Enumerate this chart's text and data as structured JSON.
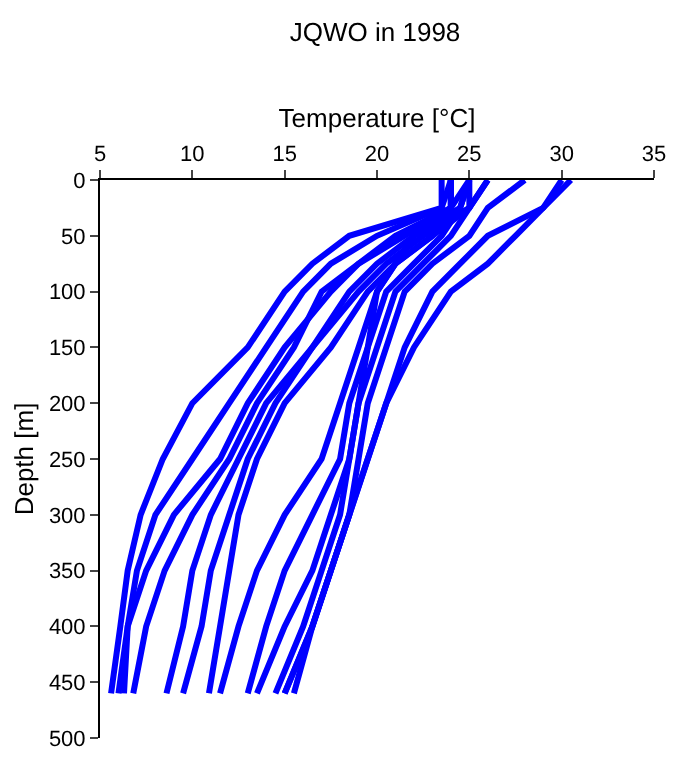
{
  "chart_data": {
    "type": "line",
    "title": "JQWO in 1998",
    "xlabel": "Temperature [°C]",
    "ylabel": "Depth [m]",
    "xlim": [
      5,
      35
    ],
    "xticks": [
      5,
      10,
      15,
      20,
      25,
      30,
      35
    ],
    "ylim": [
      500,
      0
    ],
    "yticks": [
      0,
      50,
      100,
      150,
      200,
      250,
      300,
      350,
      400,
      450,
      500
    ],
    "marker": "none",
    "line_style": "solid",
    "series": [
      {
        "color": "#0000ff",
        "x": [
          23.5,
          23.5,
          18.5,
          16.5,
          15,
          13,
          10,
          8.4,
          7.2,
          6.5,
          6.1,
          5.6
        ],
        "values": [
          0,
          25,
          50,
          75,
          100,
          150,
          200,
          250,
          300,
          350,
          400,
          460
        ]
      },
      {
        "color": "#0000ff",
        "x": [
          24,
          23.5,
          20,
          17.5,
          16,
          14,
          12,
          10,
          8,
          7,
          6.5,
          6
        ],
        "values": [
          0,
          25,
          50,
          75,
          100,
          150,
          200,
          250,
          300,
          350,
          400,
          460
        ]
      },
      {
        "color": "#0000ff",
        "x": [
          24,
          24,
          21,
          19,
          17.5,
          15,
          13,
          11.5,
          9,
          7.5,
          6.5,
          6.3
        ],
        "values": [
          0,
          25,
          50,
          75,
          100,
          150,
          200,
          250,
          300,
          350,
          400,
          460
        ]
      },
      {
        "color": "#0000ff",
        "x": [
          25,
          24,
          21.5,
          19,
          17,
          15.5,
          13.5,
          12,
          10,
          8.5,
          7.5,
          6.8
        ],
        "values": [
          0,
          25,
          50,
          75,
          100,
          150,
          200,
          250,
          300,
          350,
          400,
          460
        ]
      },
      {
        "color": "#0000ff",
        "x": [
          25,
          24.5,
          22,
          20,
          18.5,
          16.5,
          14,
          12.5,
          11,
          10,
          9.5,
          8.6
        ],
        "values": [
          0,
          25,
          50,
          75,
          100,
          150,
          200,
          250,
          300,
          350,
          400,
          460
        ]
      },
      {
        "color": "#0000ff",
        "x": [
          26,
          25,
          22.5,
          20.5,
          19,
          16.5,
          14.5,
          13,
          12,
          11,
          10.5,
          9.5
        ],
        "values": [
          0,
          25,
          50,
          75,
          100,
          150,
          200,
          250,
          300,
          350,
          400,
          460
        ]
      },
      {
        "color": "#0000ff",
        "x": [
          26,
          25,
          23,
          21,
          19.5,
          17.5,
          15,
          13.5,
          12.5,
          12,
          11.5,
          10.9
        ],
        "values": [
          0,
          25,
          50,
          75,
          100,
          150,
          200,
          250,
          300,
          350,
          400,
          460
        ]
      },
      {
        "color": "#0000ff",
        "x": [
          24,
          24,
          22,
          21,
          20,
          19,
          18,
          17,
          15,
          13.5,
          12.5,
          11.5
        ],
        "values": [
          0,
          25,
          50,
          75,
          100,
          150,
          200,
          250,
          300,
          350,
          400,
          460
        ]
      },
      {
        "color": "#0000ff",
        "x": [
          24,
          24,
          23,
          21,
          20,
          19.5,
          18.5,
          18,
          16.5,
          15,
          14,
          13
        ],
        "values": [
          0,
          25,
          50,
          75,
          100,
          150,
          200,
          250,
          300,
          350,
          400,
          460
        ]
      },
      {
        "color": "#0000ff",
        "x": [
          25,
          24.5,
          23.5,
          22,
          20.5,
          19.5,
          19,
          18.5,
          17.5,
          16.5,
          15,
          13.5
        ],
        "values": [
          0,
          25,
          50,
          75,
          100,
          150,
          200,
          250,
          300,
          350,
          400,
          460
        ]
      },
      {
        "color": "#0000ff",
        "x": [
          25,
          25,
          24,
          22.5,
          21,
          20,
          19,
          18.5,
          18,
          17,
          16,
          14.5
        ],
        "values": [
          0,
          25,
          50,
          75,
          100,
          150,
          200,
          250,
          300,
          350,
          400,
          460
        ]
      },
      {
        "color": "#0000ff",
        "x": [
          28,
          26,
          25,
          23,
          21.5,
          20.5,
          19.5,
          19,
          18.5,
          17.5,
          16.5,
          15
        ],
        "values": [
          0,
          25,
          50,
          75,
          100,
          150,
          200,
          250,
          300,
          350,
          400,
          460
        ]
      },
      {
        "color": "#0000ff",
        "x": [
          30,
          29,
          27.5,
          26,
          24,
          22,
          20.5,
          19.5,
          18.5,
          17.5,
          16.5,
          15.5
        ],
        "values": [
          0,
          25,
          50,
          75,
          100,
          150,
          200,
          250,
          300,
          350,
          400,
          460
        ]
      },
      {
        "color": "#0000ff",
        "x": [
          30.5,
          29,
          26,
          24.5,
          23,
          21.5,
          20.5,
          19.5,
          18.5,
          17.5,
          16.5,
          15
        ],
        "values": [
          0,
          25,
          50,
          75,
          100,
          150,
          200,
          250,
          300,
          350,
          400,
          460
        ]
      }
    ]
  }
}
